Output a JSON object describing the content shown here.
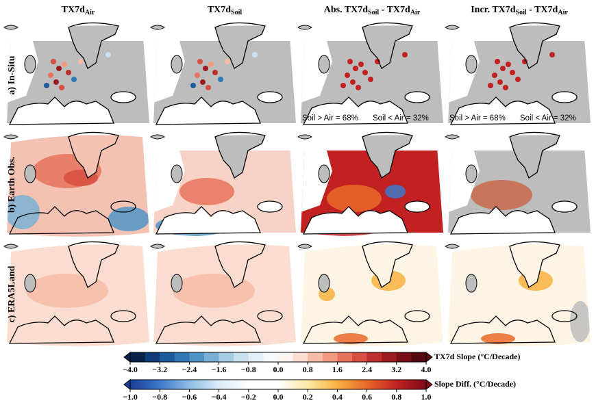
{
  "columns": [
    [
      {
        "text": "TX7d"
      },
      {
        "sub": "Air"
      }
    ],
    [
      {
        "text": "TX7d"
      },
      {
        "sub": "Soil"
      }
    ],
    [
      {
        "text": "Abs. TX7d"
      },
      {
        "sub": "Soil"
      },
      {
        "text": " - TX7d"
      },
      {
        "sub": "Air"
      }
    ],
    [
      {
        "text": "Incr. TX7d"
      },
      {
        "sub": "Soil"
      },
      {
        "text": " - TX7d"
      },
      {
        "sub": "Air"
      }
    ]
  ],
  "rows": [
    "a) In-Situ",
    "b) Earth Obs.",
    "c) ERA5Land"
  ],
  "annotations": [
    [
      "Soil > Air = 68%",
      "Soil < Air = 32%"
    ],
    [
      "Soil > Air = 68%",
      "Soil < Air = 32%"
    ]
  ],
  "colorbars": [
    {
      "label": "TX7d Slope (°C/Decade)",
      "lim": [
        -4,
        4
      ],
      "ticks": [
        {
          "value": -4,
          "label": "−4.0"
        },
        {
          "value": -3.2,
          "label": "−3.2"
        },
        {
          "value": -2.4,
          "label": "−2.4"
        },
        {
          "value": -1.6,
          "label": "−1.6"
        },
        {
          "value": -0.8,
          "label": "−0.8"
        },
        {
          "value": 0,
          "label": "0.0"
        },
        0.8,
        1.6,
        2.4,
        3.2,
        {
          "value": 4,
          "label": "4.0"
        }
      ],
      "colors": [
        "#08204a",
        "#0d3b78",
        "#1b5a9c",
        "#2f78b5",
        "#4f95c6",
        "#79b0d5",
        "#a5cbe2",
        "#c9e0ee",
        "#e3eef6",
        "#f5f9fc",
        "#fdf4f0",
        "#fbdcd0",
        "#f7bca7",
        "#f29a7f",
        "#e8735c",
        "#d64e3f",
        "#bd2f2c",
        "#9c1b20",
        "#7a0f17",
        "#56070f"
      ]
    },
    {
      "label": "Slope Diff. (°C/Decade)",
      "lim": [
        -1,
        1
      ],
      "ticks": [
        {
          "value": -1,
          "label": "−1.0"
        },
        {
          "value": -0.8,
          "label": "−0.8"
        },
        {
          "value": -0.6,
          "label": "−0.6"
        },
        {
          "value": -0.4,
          "label": "−0.4"
        },
        {
          "value": -0.2,
          "label": "−0.2"
        },
        {
          "value": 0,
          "label": "0.0"
        },
        0.2,
        0.4,
        0.6,
        0.8,
        {
          "value": 1,
          "label": "1.0"
        }
      ],
      "colors": [
        "#1a3e95",
        "#3d78c8",
        "#8fbde6",
        "#d9ecf8",
        "#ffffff",
        "#ffffff",
        "#fde9a6",
        "#f8b240",
        "#e9682a",
        "#c22122",
        "#7f0a18"
      ]
    }
  ]
}
